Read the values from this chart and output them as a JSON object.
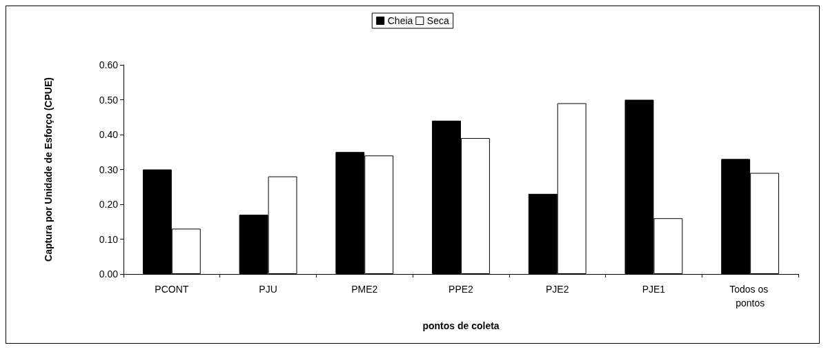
{
  "chart_data": {
    "type": "bar",
    "xlabel": "pontos de coleta",
    "ylabel": "Captura por Unidade de Esforço (CPUE)",
    "categories": [
      "PCONT",
      "PJU",
      "PME2",
      "PPE2",
      "PJE2",
      "PJE1",
      "Todos os pontos"
    ],
    "series": [
      {
        "name": "Cheia",
        "color": "#000000",
        "values": [
          0.3,
          0.17,
          0.35,
          0.44,
          0.23,
          0.5,
          0.33
        ]
      },
      {
        "name": "Seca",
        "color": "#ffffff",
        "values": [
          0.13,
          0.28,
          0.34,
          0.39,
          0.49,
          0.16,
          0.29
        ]
      }
    ],
    "ylim": [
      0,
      0.6
    ],
    "yticks": [
      {
        "value": 0,
        "label": "0.00"
      },
      {
        "value": 0.1,
        "label": "0.10"
      },
      {
        "value": 0.2,
        "label": "0.20"
      },
      {
        "value": 0.3,
        "label": "0.30"
      },
      {
        "value": 0.4,
        "label": "0.40"
      },
      {
        "value": 0.5,
        "label": "0.50"
      },
      {
        "value": 0.6,
        "label": "0.60"
      }
    ],
    "grid": false,
    "legend": "top"
  }
}
